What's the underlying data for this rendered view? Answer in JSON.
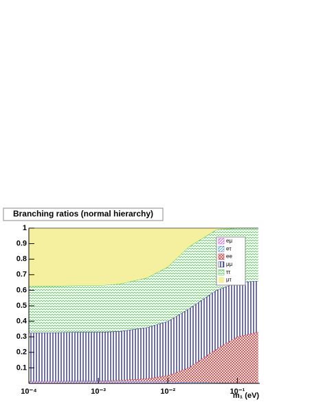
{
  "chart_data": {
    "type": "stacked-area",
    "title": "Branching ratios (normal hierarchy)",
    "x_label": "m₁ (eV)",
    "x": [
      0.0001,
      0.0002,
      0.0005,
      0.001,
      0.002,
      0.005,
      0.01,
      0.02,
      0.05,
      0.1,
      0.2
    ],
    "xlim": [
      0.0001,
      0.21
    ],
    "log_x": true,
    "xticks": [
      {
        "value": 0.0001,
        "label": "10⁻⁴"
      },
      {
        "value": 0.001,
        "label": "10⁻³"
      },
      {
        "value": 0.01,
        "label": "10⁻²"
      },
      {
        "value": 0.1,
        "label": "10⁻¹"
      }
    ],
    "ylim": [
      0,
      1
    ],
    "yticks": [
      0.1,
      0.2,
      0.3,
      0.4,
      0.5,
      0.6,
      0.7,
      0.8,
      0.9,
      1
    ],
    "series": [
      {
        "name": "eμ",
        "color": "#d020d0",
        "values": [
          0.005,
          0.005,
          0.005,
          0.005,
          0.005,
          0.005,
          0.004,
          0.003,
          0.002,
          0.001,
          0.001
        ]
      },
      {
        "name": "eτ",
        "color": "#2080d0",
        "values": [
          0.008,
          0.008,
          0.008,
          0.008,
          0.008,
          0.008,
          0.007,
          0.005,
          0.003,
          0.002,
          0.002
        ]
      },
      {
        "name": "ee",
        "color": "#d02020",
        "values": [
          0.001,
          0.001,
          0.002,
          0.003,
          0.007,
          0.017,
          0.039,
          0.092,
          0.215,
          0.297,
          0.327
        ]
      },
      {
        "name": "μμ",
        "color": "#101070",
        "values": [
          0.311,
          0.313,
          0.315,
          0.314,
          0.315,
          0.33,
          0.35,
          0.38,
          0.38,
          0.35,
          0.33
        ]
      },
      {
        "name": "ττ",
        "color": "#30c030",
        "values": [
          0.3,
          0.3,
          0.3,
          0.3,
          0.305,
          0.32,
          0.35,
          0.4,
          0.39,
          0.35,
          0.34
        ]
      },
      {
        "name": "μτ",
        "color": "#f4f0a0",
        "values": [
          0.375,
          0.373,
          0.37,
          0.37,
          0.36,
          0.32,
          0.25,
          0.12,
          0.01,
          0,
          0
        ]
      }
    ]
  }
}
